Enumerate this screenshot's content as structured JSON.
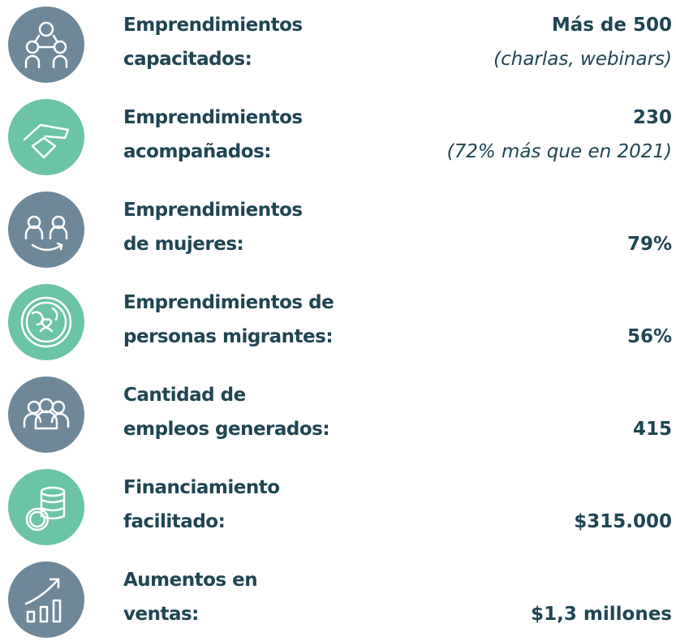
{
  "items": [
    {
      "label": [
        "Emprendimientos",
        "capacitados:"
      ],
      "value": "Más de 500",
      "note": "(charlas, webinars)"
    },
    {
      "label": [
        "Emprendimientos",
        "acompañados:"
      ],
      "value": "230",
      "note": "(72% más que en 2021)"
    },
    {
      "label": [
        "Emprendimientos",
        "de mujeres:"
      ],
      "value": "79%"
    },
    {
      "label": [
        "Emprendimientos de",
        "personas migrantes:"
      ],
      "value": "56%"
    },
    {
      "label": [
        "Cantidad de",
        "empleos generados:"
      ],
      "value": "415"
    },
    {
      "label": [
        "Financiamiento",
        "facilitado:"
      ],
      "value": "$315.000"
    },
    {
      "label": [
        "Aumentos en",
        "ventas:"
      ],
      "value": "$1,3 millones"
    }
  ]
}
